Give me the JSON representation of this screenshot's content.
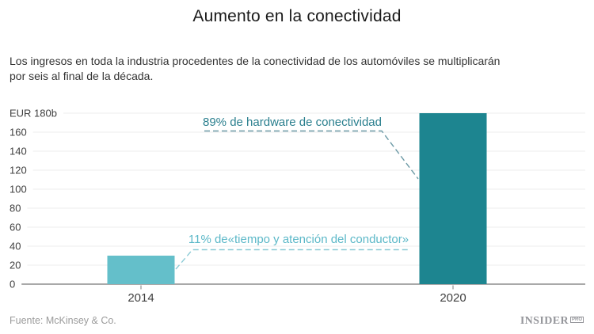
{
  "header": {
    "title": "Aumento en la conectividad",
    "subtitle_lines": {
      "l1": "Los ingresos en toda la industria procedentes de la conectividad de los automóviles se multiplicarán",
      "l2": "por seis al final de la década."
    }
  },
  "footer": {
    "source": "Fuente: McKinsey & Co.",
    "brand": {
      "name": "INSIDER",
      "suffix": "PRO"
    }
  },
  "chart_data": {
    "type": "bar",
    "categories": [
      "2014",
      "2020"
    ],
    "values": [
      30,
      180
    ],
    "bar_colors": [
      "#64bfca",
      "#1d8590"
    ],
    "ytop_label": "EUR 180b",
    "ylim": [
      0,
      180
    ],
    "yticks": [
      0,
      20,
      40,
      60,
      80,
      100,
      120,
      140,
      160
    ],
    "grid": true,
    "legend": false,
    "xlabel": "",
    "ylabel": "",
    "annotations": [
      {
        "text": "89% de hardware de conectividad",
        "text_color": "#2a7f8e",
        "line_color": "#6d9aa6",
        "points_to": "2020",
        "points_to_value": 110
      },
      {
        "text": "11% de«tiempo y atención del conductor»",
        "text_color": "#5cb8c8",
        "line_color": "#8ccbd6",
        "points_to": "2014",
        "points_to_value": 30
      }
    ]
  }
}
